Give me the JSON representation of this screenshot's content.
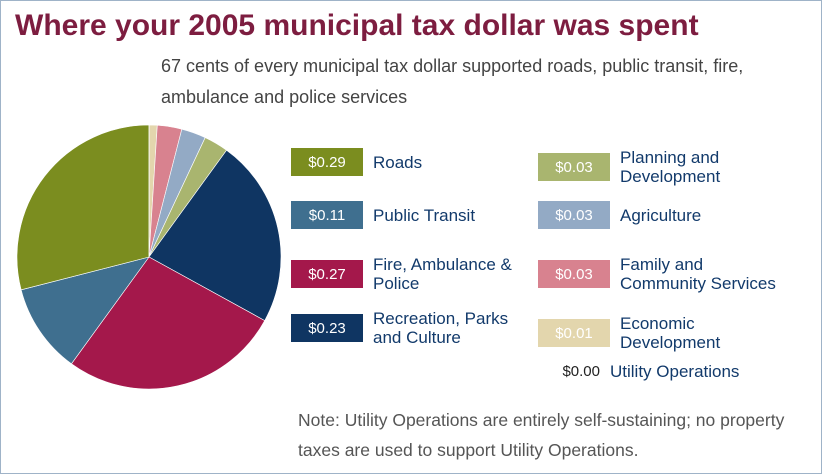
{
  "chart_data": {
    "type": "pie",
    "title": "Where your 2005 municipal tax dollar was spent",
    "subtitle": "67 cents of every municipal tax dollar supported roads, public transit, fire, ambulance and police services",
    "note": "Note: Utility Operations are entirely self-sustaining; no property taxes are used to support Utility Operations.",
    "categories": [
      "Economic Development",
      "Family and Community Services",
      "Agriculture",
      "Planning and Development",
      "Recreation, Parks and Culture",
      "Fire, Ambulance & Police",
      "Public Transit",
      "Roads",
      "Utility Operations"
    ],
    "values": [
      0.01,
      0.03,
      0.03,
      0.03,
      0.23,
      0.27,
      0.11,
      0.29,
      0.0
    ],
    "value_labels": [
      "$0.01",
      "$0.03",
      "$0.03",
      "$0.03",
      "$0.23",
      "$0.27",
      "$0.11",
      "$0.29",
      "$0.00"
    ],
    "colors": [
      "#e3d6ad",
      "#d8828f",
      "#93aac5",
      "#a9b56f",
      "#0f3562",
      "#a4184b",
      "#3f6f8f",
      "#7b8d1f",
      null
    ]
  }
}
